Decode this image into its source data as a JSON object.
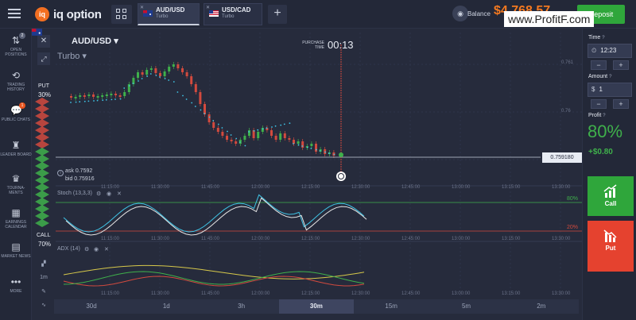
{
  "logo": {
    "mark": "iq",
    "text": "iq option"
  },
  "tabs": [
    {
      "title": "AUD/USD",
      "sub": "Turbo",
      "close": "✕",
      "active": true
    },
    {
      "title": "USD/CAD",
      "sub": "Turbo",
      "close": "✕",
      "active": false
    }
  ],
  "add_tab": "+",
  "balance": {
    "label": "Balance",
    "amount": "$4,768.57"
  },
  "deposit": "Deposit",
  "watermark": "www.ProfitF.com",
  "sidebar": [
    {
      "label": "Open positions",
      "icon": "⇅",
      "badge": "2"
    },
    {
      "label": "Trading history",
      "icon": "⟲",
      "badge": ""
    },
    {
      "label": "Public chats",
      "icon": "💬",
      "badge": "1"
    },
    {
      "label": "Leader board",
      "icon": "♜",
      "badge": ""
    },
    {
      "label": "Tourna-ments",
      "icon": "♛",
      "badge": ""
    },
    {
      "label": "Earnings calendar",
      "icon": "▦",
      "badge": ""
    },
    {
      "label": "Market news",
      "icon": "▤",
      "badge": ""
    },
    {
      "label": "More",
      "icon": "•••",
      "badge": ""
    }
  ],
  "chart": {
    "asset": "AUD/USD",
    "asset_caret": "▾",
    "mode": "Turbo ▾",
    "put_label": "PUT",
    "put_pct": "30%",
    "call_label": "CALL",
    "call_pct": "70%",
    "purchase_time_label": "PURCHASE TIME",
    "timer": "00:13",
    "price_ticks": [
      "0.761",
      "0.76"
    ],
    "current_price": "0.759180",
    "ask": "ask 0.7592",
    "bid": "bid 0.75916",
    "stoch_label": "Stoch (13,3,3)",
    "adx_label": "ADX (14)",
    "level_80": "80%",
    "level_20": "20%",
    "time_labels": [
      "11:15:00",
      "11:30:00",
      "11:45:00",
      "12:00:00",
      "12:15:00",
      "12:30:00",
      "12:45:00",
      "13:00:00",
      "13:15:00",
      "13:30:00"
    ],
    "intervals": [
      "1m"
    ],
    "timeframes": [
      "30d",
      "1d",
      "3h",
      "30m",
      "15m",
      "5m",
      "2m"
    ],
    "active_timeframe": "30m",
    "colors": {
      "up": "#3fb04b",
      "down": "#d24a3e",
      "sar": "#3fc4e6"
    }
  },
  "right_panel": {
    "time_label": "Time",
    "time_value": "12:23",
    "amount_label": "Amount",
    "amount_value": "1",
    "amount_prefix": "$",
    "profit_label": "Profit",
    "profit_pct": "80%",
    "profit_amount": "+$0.80",
    "call": "Call",
    "put": "Put",
    "minus": "−",
    "plus": "+"
  }
}
